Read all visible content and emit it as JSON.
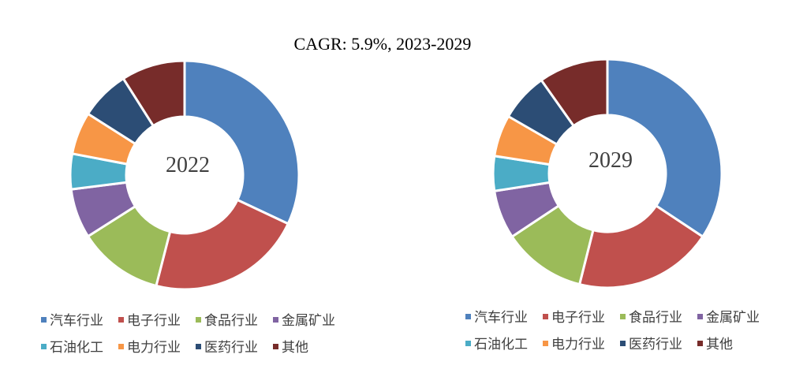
{
  "chart_data": [
    {
      "type": "donut",
      "title": "CAGR: 5.9%, 2023-2029",
      "center_label": "2022",
      "categories": [
        "汽车行业",
        "电子行业",
        "食品行业",
        "金属矿业",
        "石油化工",
        "电力行业",
        "医药行业",
        "其他"
      ],
      "values": [
        32,
        22,
        12,
        7,
        5,
        6,
        7,
        9
      ],
      "colors": [
        "#4F81BD",
        "#C0504D",
        "#9BBB59",
        "#8064A2",
        "#4BACC6",
        "#F79646",
        "#2C4D75",
        "#772C2A"
      ],
      "legend_position": "bottom"
    },
    {
      "type": "donut",
      "center_label": "2029",
      "categories": [
        "汽车行业",
        "电子行业",
        "食品行业",
        "金属矿业",
        "石油化工",
        "电力行业",
        "医药行业",
        "其他"
      ],
      "values": [
        35,
        20,
        12,
        7,
        5,
        6,
        7,
        10
      ],
      "colors": [
        "#4F81BD",
        "#C0504D",
        "#9BBB59",
        "#8064A2",
        "#4BACC6",
        "#F79646",
        "#2C4D75",
        "#772C2A"
      ],
      "legend_position": "bottom"
    }
  ]
}
